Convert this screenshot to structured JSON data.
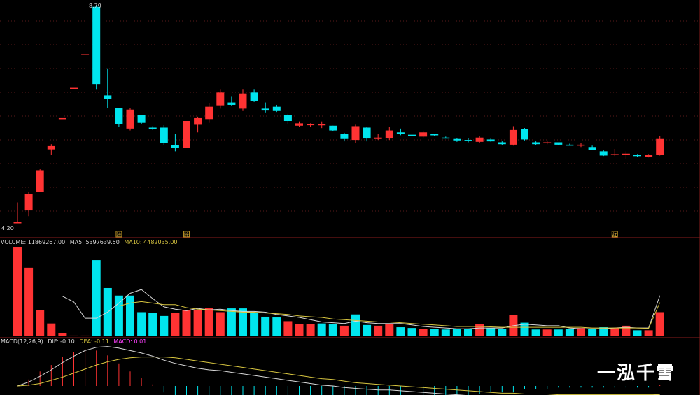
{
  "price_panel": {
    "high_label": "8.79",
    "low_label": "4.20",
    "event_markers": [
      "除",
      "除",
      "红"
    ]
  },
  "volume_panel": {
    "label_volume": "VOLUME: 11869267.00",
    "label_ma5": "MA5: 5397639.50",
    "label_ma10": "MA10: 4482035.00"
  },
  "macd_panel": {
    "label_params": "MACD(12,26,9)",
    "label_dif": "DIF: -0.10",
    "label_dea": "DEA: -0.11",
    "label_macd": "MACD: 0.01"
  },
  "watermark": "一泓千雪",
  "colors": {
    "up": "#ff3333",
    "down": "#00e5ee",
    "ma5": "#d8d8d8",
    "ma10": "#d8c640",
    "dea": "#d8c640",
    "macd_label": "#ff40ff",
    "divider": "#7a1a1a",
    "grid": "#5a1a1a"
  },
  "chart_data": [
    {
      "type": "candlestick",
      "title": "",
      "ylim": [
        4.2,
        8.79
      ],
      "candles": [
        {
          "o": 4.2,
          "h": 4.62,
          "l": 4.2,
          "c": 4.2,
          "dir": "up"
        },
        {
          "o": 4.45,
          "h": 4.85,
          "l": 4.33,
          "c": 4.8,
          "dir": "up"
        },
        {
          "o": 4.84,
          "h": 5.32,
          "l": 4.84,
          "c": 5.3,
          "dir": "up"
        },
        {
          "o": 5.74,
          "h": 5.85,
          "l": 5.63,
          "c": 5.81,
          "dir": "up"
        },
        {
          "o": 6.4,
          "h": 6.4,
          "l": 6.4,
          "c": 6.4,
          "dir": "up"
        },
        {
          "o": 7.04,
          "h": 7.04,
          "l": 7.04,
          "c": 7.04,
          "dir": "up"
        },
        {
          "o": 7.75,
          "h": 7.75,
          "l": 7.75,
          "c": 7.75,
          "dir": "up"
        },
        {
          "o": 8.75,
          "h": 8.79,
          "l": 7.0,
          "c": 7.12,
          "dir": "down"
        },
        {
          "o": 6.88,
          "h": 7.45,
          "l": 6.61,
          "c": 6.8,
          "dir": "down"
        },
        {
          "o": 6.62,
          "h": 6.62,
          "l": 6.22,
          "c": 6.28,
          "dir": "down"
        },
        {
          "o": 6.18,
          "h": 6.62,
          "l": 6.14,
          "c": 6.58,
          "dir": "up"
        },
        {
          "o": 6.47,
          "h": 6.47,
          "l": 6.27,
          "c": 6.3,
          "dir": "down"
        },
        {
          "o": 6.2,
          "h": 6.23,
          "l": 6.15,
          "c": 6.18,
          "dir": "down"
        },
        {
          "o": 6.2,
          "h": 6.25,
          "l": 5.83,
          "c": 5.88,
          "dir": "down"
        },
        {
          "o": 5.83,
          "h": 6.06,
          "l": 5.7,
          "c": 5.77,
          "dir": "down"
        },
        {
          "o": 5.77,
          "h": 6.34,
          "l": 5.77,
          "c": 6.34,
          "dir": "up"
        },
        {
          "o": 6.26,
          "h": 6.43,
          "l": 6.1,
          "c": 6.4,
          "dir": "up"
        },
        {
          "o": 6.38,
          "h": 6.72,
          "l": 6.3,
          "c": 6.64,
          "dir": "up"
        },
        {
          "o": 6.67,
          "h": 7.0,
          "l": 6.6,
          "c": 6.94,
          "dir": "up"
        },
        {
          "o": 6.73,
          "h": 6.85,
          "l": 6.66,
          "c": 6.68,
          "dir": "down"
        },
        {
          "o": 6.6,
          "h": 7.0,
          "l": 6.55,
          "c": 6.92,
          "dir": "up"
        },
        {
          "o": 6.94,
          "h": 7.0,
          "l": 6.74,
          "c": 6.76,
          "dir": "down"
        },
        {
          "o": 6.6,
          "h": 6.73,
          "l": 6.52,
          "c": 6.56,
          "dir": "down"
        },
        {
          "o": 6.64,
          "h": 6.68,
          "l": 6.53,
          "c": 6.55,
          "dir": "down"
        },
        {
          "o": 6.47,
          "h": 6.49,
          "l": 6.28,
          "c": 6.34,
          "dir": "down"
        },
        {
          "o": 6.24,
          "h": 6.33,
          "l": 6.21,
          "c": 6.29,
          "dir": "up"
        },
        {
          "o": 6.25,
          "h": 6.29,
          "l": 6.22,
          "c": 6.28,
          "dir": "up"
        },
        {
          "o": 6.27,
          "h": 6.33,
          "l": 6.19,
          "c": 6.27,
          "dir": "up"
        },
        {
          "o": 6.24,
          "h": 6.24,
          "l": 6.12,
          "c": 6.14,
          "dir": "down"
        },
        {
          "o": 6.06,
          "h": 6.09,
          "l": 5.91,
          "c": 5.96,
          "dir": "down"
        },
        {
          "o": 5.94,
          "h": 6.26,
          "l": 5.87,
          "c": 6.23,
          "dir": "up"
        },
        {
          "o": 6.2,
          "h": 6.22,
          "l": 5.91,
          "c": 5.97,
          "dir": "down"
        },
        {
          "o": 5.96,
          "h": 6.06,
          "l": 5.94,
          "c": 5.99,
          "dir": "up"
        },
        {
          "o": 5.97,
          "h": 6.21,
          "l": 5.94,
          "c": 6.14,
          "dir": "up"
        },
        {
          "o": 6.1,
          "h": 6.18,
          "l": 6.04,
          "c": 6.06,
          "dir": "down"
        },
        {
          "o": 6.05,
          "h": 6.11,
          "l": 6.0,
          "c": 6.02,
          "dir": "down"
        },
        {
          "o": 6.01,
          "h": 6.12,
          "l": 5.99,
          "c": 6.1,
          "dir": "up"
        },
        {
          "o": 6.06,
          "h": 6.07,
          "l": 6.02,
          "c": 6.04,
          "dir": "down"
        },
        {
          "o": 5.99,
          "h": 6.01,
          "l": 5.97,
          "c": 5.98,
          "dir": "down"
        },
        {
          "o": 5.96,
          "h": 5.98,
          "l": 5.9,
          "c": 5.93,
          "dir": "down"
        },
        {
          "o": 5.94,
          "h": 5.98,
          "l": 5.89,
          "c": 5.92,
          "dir": "down"
        },
        {
          "o": 5.9,
          "h": 6.02,
          "l": 5.88,
          "c": 5.99,
          "dir": "up"
        },
        {
          "o": 5.95,
          "h": 5.97,
          "l": 5.9,
          "c": 5.91,
          "dir": "down"
        },
        {
          "o": 5.89,
          "h": 5.91,
          "l": 5.83,
          "c": 5.85,
          "dir": "down"
        },
        {
          "o": 5.84,
          "h": 6.23,
          "l": 5.82,
          "c": 6.15,
          "dir": "up"
        },
        {
          "o": 6.17,
          "h": 6.19,
          "l": 5.93,
          "c": 5.95,
          "dir": "down"
        },
        {
          "o": 5.89,
          "h": 5.91,
          "l": 5.83,
          "c": 5.85,
          "dir": "down"
        },
        {
          "o": 5.88,
          "h": 5.93,
          "l": 5.85,
          "c": 5.89,
          "dir": "up"
        },
        {
          "o": 5.89,
          "h": 5.89,
          "l": 5.83,
          "c": 5.84,
          "dir": "down"
        },
        {
          "o": 5.84,
          "h": 5.86,
          "l": 5.82,
          "c": 5.83,
          "dir": "down"
        },
        {
          "o": 5.83,
          "h": 5.87,
          "l": 5.79,
          "c": 5.84,
          "dir": "up"
        },
        {
          "o": 5.79,
          "h": 5.82,
          "l": 5.72,
          "c": 5.73,
          "dir": "down"
        },
        {
          "o": 5.7,
          "h": 5.72,
          "l": 5.6,
          "c": 5.61,
          "dir": "down"
        },
        {
          "o": 5.62,
          "h": 5.75,
          "l": 5.6,
          "c": 5.64,
          "dir": "up"
        },
        {
          "o": 5.64,
          "h": 5.7,
          "l": 5.53,
          "c": 5.65,
          "dir": "up"
        },
        {
          "o": 5.62,
          "h": 5.64,
          "l": 5.58,
          "c": 5.6,
          "dir": "down"
        },
        {
          "o": 5.58,
          "h": 5.64,
          "l": 5.57,
          "c": 5.62,
          "dir": "up"
        },
        {
          "o": 5.62,
          "h": 6.02,
          "l": 5.61,
          "c": 5.96,
          "dir": "up"
        }
      ],
      "event_markers": [
        {
          "candle_index": 9,
          "text": "除"
        },
        {
          "candle_index": 15,
          "text": "除"
        },
        {
          "candle_index": 53,
          "text": "红"
        }
      ]
    },
    {
      "type": "bar",
      "title": "",
      "series_name": "VOLUME",
      "values": [
        11869267,
        9100000,
        3500000,
        1700000,
        400000,
        100000,
        100000,
        10100000,
        6400000,
        5400000,
        5400000,
        3200000,
        3100000,
        2700000,
        3100000,
        3500000,
        3500000,
        3800000,
        3200000,
        3700000,
        3700000,
        3100000,
        2600000,
        2500000,
        2000000,
        1600000,
        1600000,
        1700000,
        1600000,
        1400000,
        2900000,
        1500000,
        1400000,
        1600000,
        1200000,
        1100000,
        1000000,
        1000000,
        900000,
        1000000,
        1000000,
        1600000,
        1100000,
        1000000,
        2800000,
        1800000,
        900000,
        900000,
        900000,
        1000000,
        1100000,
        1000000,
        1200000,
        1100000,
        1400000,
        800000,
        800000,
        3200000
      ],
      "directions": [
        "up",
        "up",
        "up",
        "up",
        "up",
        "up",
        "up",
        "down",
        "down",
        "down",
        "down",
        "down",
        "down",
        "down",
        "up",
        "up",
        "up",
        "up",
        "up",
        "down",
        "down",
        "down",
        "down",
        "down",
        "up",
        "up",
        "up",
        "down",
        "down",
        "up",
        "down",
        "down",
        "up",
        "up",
        "down",
        "down",
        "up",
        "down",
        "down",
        "down",
        "down",
        "up",
        "down",
        "down",
        "up",
        "down",
        "down",
        "up",
        "down",
        "down",
        "up",
        "down",
        "down",
        "up",
        "up",
        "down",
        "up",
        "up"
      ],
      "ma5": [
        null,
        null,
        null,
        null,
        5300000,
        4550000,
        2400000,
        2400000,
        3200000,
        4400000,
        5700000,
        6200000,
        5000000,
        3900000,
        3600000,
        3400000,
        3700000,
        3500000,
        3600000,
        3400000,
        3300000,
        3300000,
        3200000,
        2900000,
        2700000,
        2500000,
        2200000,
        1900000,
        1800000,
        1700000,
        2000000,
        1800000,
        1700000,
        1700000,
        1700000,
        1500000,
        1300000,
        1200000,
        1100000,
        1000000,
        1000000,
        1100000,
        1100000,
        1100000,
        1400000,
        1600000,
        1500000,
        1400000,
        1400000,
        1100000,
        1000000,
        1000000,
        1000000,
        1100000,
        1200000,
        1100000,
        1100000,
        5397639.5
      ],
      "ma10": [
        null,
        null,
        null,
        null,
        null,
        null,
        null,
        null,
        null,
        4000000,
        4400000,
        4600000,
        4400000,
        4200000,
        4200000,
        3800000,
        3600000,
        3500000,
        3400000,
        3300000,
        3200000,
        3200000,
        3100000,
        3000000,
        2900000,
        2700000,
        2600000,
        2500000,
        2300000,
        2200000,
        2100000,
        2000000,
        1900000,
        1900000,
        1800000,
        1700000,
        1600000,
        1500000,
        1400000,
        1300000,
        1300000,
        1300000,
        1250000,
        1200000,
        1200000,
        1200000,
        1200000,
        1200000,
        1200000,
        1200000,
        1200000,
        1100000,
        1100000,
        1100000,
        1100000,
        1100000,
        1050000,
        4482035
      ]
    },
    {
      "type": "line",
      "title": "",
      "series": [
        {
          "name": "DIF",
          "values": [
            0.0,
            0.05,
            0.12,
            0.2,
            0.29,
            0.37,
            0.44,
            0.48,
            0.49,
            0.47,
            0.44,
            0.41,
            0.37,
            0.32,
            0.28,
            0.25,
            0.22,
            0.2,
            0.19,
            0.17,
            0.15,
            0.13,
            0.11,
            0.09,
            0.07,
            0.05,
            0.03,
            0.01,
            0.0,
            -0.02,
            -0.03,
            -0.04,
            -0.05,
            -0.05,
            -0.06,
            -0.07,
            -0.08,
            -0.09,
            -0.1,
            -0.11,
            -0.12,
            -0.12,
            -0.12,
            -0.13,
            -0.13,
            -0.12,
            -0.12,
            -0.12,
            -0.12,
            -0.12,
            -0.12,
            -0.12,
            -0.12,
            -0.12,
            -0.12,
            -0.12,
            -0.12,
            -0.1
          ]
        },
        {
          "name": "DEA",
          "values": [
            0.0,
            0.01,
            0.03,
            0.07,
            0.11,
            0.16,
            0.21,
            0.26,
            0.3,
            0.33,
            0.35,
            0.36,
            0.36,
            0.36,
            0.35,
            0.33,
            0.31,
            0.29,
            0.27,
            0.25,
            0.23,
            0.21,
            0.19,
            0.17,
            0.15,
            0.13,
            0.11,
            0.09,
            0.08,
            0.06,
            0.04,
            0.03,
            0.02,
            0.01,
            0.0,
            -0.01,
            -0.02,
            -0.03,
            -0.04,
            -0.05,
            -0.06,
            -0.07,
            -0.08,
            -0.09,
            -0.09,
            -0.1,
            -0.1,
            -0.1,
            -0.11,
            -0.11,
            -0.11,
            -0.11,
            -0.11,
            -0.11,
            -0.11,
            -0.11,
            -0.11,
            -0.11
          ]
        },
        {
          "name": "MACD",
          "values": [
            0.0,
            0.08,
            0.18,
            0.26,
            0.36,
            0.42,
            0.46,
            0.44,
            0.38,
            0.28,
            0.18,
            0.1,
            0.02,
            -0.08,
            -0.14,
            -0.16,
            -0.18,
            -0.18,
            -0.16,
            -0.16,
            -0.16,
            -0.16,
            -0.16,
            -0.16,
            -0.16,
            -0.16,
            -0.16,
            -0.16,
            -0.16,
            -0.16,
            -0.14,
            -0.14,
            -0.14,
            -0.12,
            -0.12,
            -0.12,
            -0.12,
            -0.12,
            -0.12,
            -0.12,
            -0.12,
            -0.1,
            -0.08,
            -0.08,
            -0.08,
            -0.04,
            -0.04,
            -0.04,
            -0.02,
            -0.02,
            -0.02,
            -0.02,
            -0.02,
            -0.02,
            -0.02,
            -0.02,
            -0.02,
            0.01
          ]
        }
      ]
    }
  ]
}
